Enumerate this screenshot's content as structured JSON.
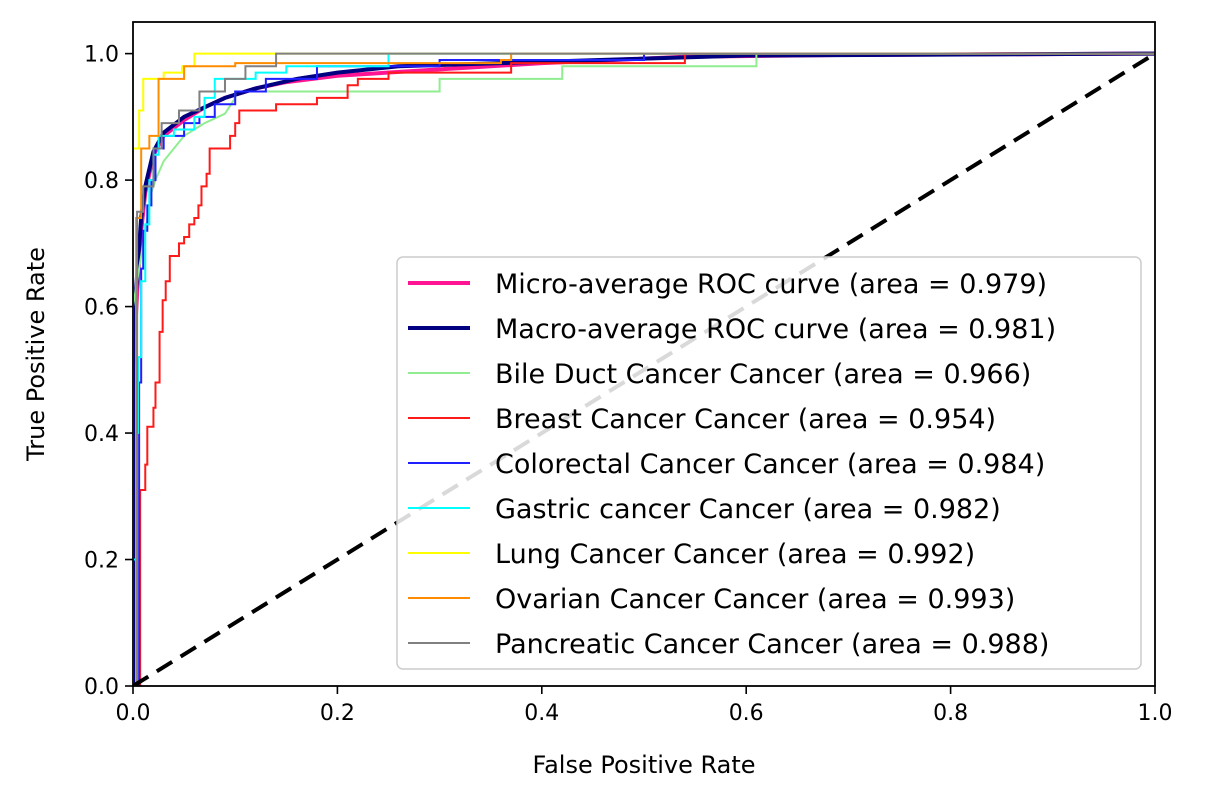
{
  "chart_data": {
    "type": "line",
    "title": "",
    "xlabel": "False Positive Rate",
    "ylabel": "True Positive Rate",
    "xlim": [
      0.0,
      1.0
    ],
    "ylim": [
      0.0,
      1.05
    ],
    "xticks": [
      0.0,
      0.2,
      0.4,
      0.6,
      0.8,
      1.0
    ],
    "yticks": [
      0.0,
      0.2,
      0.4,
      0.6,
      0.8,
      1.0
    ],
    "xtick_labels": [
      "0.0",
      "0.2",
      "0.4",
      "0.6",
      "0.8",
      "1.0"
    ],
    "ytick_labels": [
      "0.0",
      "0.2",
      "0.4",
      "0.6",
      "0.8",
      "1.0"
    ],
    "grid": false,
    "legend_position": "lower-right",
    "series": [
      {
        "name": "Micro-average ROC curve (area = 0.979)",
        "color": "#ff1493",
        "width": 4,
        "points": [
          [
            0,
            0
          ],
          [
            0,
            0.5
          ],
          [
            0.004,
            0.62
          ],
          [
            0.008,
            0.72
          ],
          [
            0.012,
            0.78
          ],
          [
            0.02,
            0.84
          ],
          [
            0.03,
            0.87
          ],
          [
            0.05,
            0.895
          ],
          [
            0.07,
            0.915
          ],
          [
            0.09,
            0.93
          ],
          [
            0.12,
            0.945
          ],
          [
            0.15,
            0.955
          ],
          [
            0.2,
            0.965
          ],
          [
            0.3,
            0.975
          ],
          [
            0.4,
            0.985
          ],
          [
            0.54,
            0.995
          ],
          [
            0.7,
            0.998
          ],
          [
            1.0,
            1.0
          ]
        ]
      },
      {
        "name": "Macro-average ROC curve (area = 0.981)",
        "color": "#000080",
        "width": 4,
        "points": [
          [
            0,
            0
          ],
          [
            0,
            0.55
          ],
          [
            0.004,
            0.65
          ],
          [
            0.008,
            0.74
          ],
          [
            0.012,
            0.79
          ],
          [
            0.02,
            0.845
          ],
          [
            0.03,
            0.875
          ],
          [
            0.05,
            0.9
          ],
          [
            0.07,
            0.915
          ],
          [
            0.09,
            0.93
          ],
          [
            0.12,
            0.945
          ],
          [
            0.16,
            0.96
          ],
          [
            0.2,
            0.97
          ],
          [
            0.26,
            0.98
          ],
          [
            0.36,
            0.985
          ],
          [
            0.5,
            0.992
          ],
          [
            0.6,
            0.997
          ],
          [
            1.0,
            1.0
          ]
        ]
      },
      {
        "name": "Bile Duct Cancer Cancer (area = 0.966)",
        "color": "#90ee90",
        "width": 2,
        "points": [
          [
            0,
            0
          ],
          [
            0,
            0.6
          ],
          [
            0.01,
            0.7
          ],
          [
            0.018,
            0.78
          ],
          [
            0.022,
            0.8
          ],
          [
            0.03,
            0.83
          ],
          [
            0.05,
            0.87
          ],
          [
            0.07,
            0.89
          ],
          [
            0.09,
            0.905
          ],
          [
            0.1,
            0.93
          ],
          [
            0.1,
            0.94
          ],
          [
            0.3,
            0.94
          ],
          [
            0.3,
            0.96
          ],
          [
            0.42,
            0.96
          ],
          [
            0.42,
            0.98
          ],
          [
            0.61,
            0.98
          ],
          [
            0.61,
            1.0
          ],
          [
            1.0,
            1.0
          ]
        ]
      },
      {
        "name": "Breast Cancer Cancer (area = 0.954)",
        "color": "#ff1a1a",
        "width": 2,
        "points": [
          [
            0,
            0
          ],
          [
            0.007,
            0.0
          ],
          [
            0.007,
            0.31
          ],
          [
            0.012,
            0.31
          ],
          [
            0.012,
            0.35
          ],
          [
            0.014,
            0.35
          ],
          [
            0.014,
            0.41
          ],
          [
            0.02,
            0.41
          ],
          [
            0.02,
            0.44
          ],
          [
            0.022,
            0.44
          ],
          [
            0.022,
            0.48
          ],
          [
            0.026,
            0.48
          ],
          [
            0.026,
            0.56
          ],
          [
            0.029,
            0.56
          ],
          [
            0.029,
            0.61
          ],
          [
            0.032,
            0.61
          ],
          [
            0.032,
            0.64
          ],
          [
            0.036,
            0.64
          ],
          [
            0.036,
            0.68
          ],
          [
            0.045,
            0.68
          ],
          [
            0.045,
            0.7
          ],
          [
            0.05,
            0.7
          ],
          [
            0.05,
            0.71
          ],
          [
            0.055,
            0.71
          ],
          [
            0.055,
            0.73
          ],
          [
            0.06,
            0.73
          ],
          [
            0.06,
            0.74
          ],
          [
            0.064,
            0.74
          ],
          [
            0.064,
            0.76
          ],
          [
            0.067,
            0.76
          ],
          [
            0.067,
            0.79
          ],
          [
            0.072,
            0.79
          ],
          [
            0.072,
            0.81
          ],
          [
            0.075,
            0.81
          ],
          [
            0.075,
            0.85
          ],
          [
            0.095,
            0.85
          ],
          [
            0.095,
            0.87
          ],
          [
            0.1,
            0.87
          ],
          [
            0.1,
            0.89
          ],
          [
            0.104,
            0.89
          ],
          [
            0.104,
            0.91
          ],
          [
            0.14,
            0.91
          ],
          [
            0.14,
            0.92
          ],
          [
            0.18,
            0.92
          ],
          [
            0.18,
            0.93
          ],
          [
            0.21,
            0.93
          ],
          [
            0.21,
            0.95
          ],
          [
            0.22,
            0.95
          ],
          [
            0.22,
            0.96
          ],
          [
            0.25,
            0.96
          ],
          [
            0.25,
            0.97
          ],
          [
            0.37,
            0.97
          ],
          [
            0.37,
            0.985
          ],
          [
            0.54,
            0.985
          ],
          [
            0.54,
            1.0
          ],
          [
            1.0,
            1.0
          ]
        ]
      },
      {
        "name": "Colorectal Cancer Cancer (area = 0.984)",
        "color": "#1f1fff",
        "width": 2,
        "points": [
          [
            0,
            0
          ],
          [
            0.006,
            0
          ],
          [
            0.006,
            0.48
          ],
          [
            0.008,
            0.48
          ],
          [
            0.008,
            0.66
          ],
          [
            0.01,
            0.66
          ],
          [
            0.01,
            0.72
          ],
          [
            0.014,
            0.72
          ],
          [
            0.014,
            0.76
          ],
          [
            0.018,
            0.76
          ],
          [
            0.018,
            0.8
          ],
          [
            0.022,
            0.8
          ],
          [
            0.022,
            0.85
          ],
          [
            0.03,
            0.85
          ],
          [
            0.03,
            0.87
          ],
          [
            0.05,
            0.87
          ],
          [
            0.05,
            0.89
          ],
          [
            0.065,
            0.89
          ],
          [
            0.065,
            0.9
          ],
          [
            0.08,
            0.9
          ],
          [
            0.08,
            0.92
          ],
          [
            0.1,
            0.92
          ],
          [
            0.1,
            0.94
          ],
          [
            0.13,
            0.94
          ],
          [
            0.13,
            0.96
          ],
          [
            0.18,
            0.96
          ],
          [
            0.18,
            0.98
          ],
          [
            0.3,
            0.98
          ],
          [
            0.3,
            0.99
          ],
          [
            0.5,
            0.99
          ],
          [
            0.5,
            1.0
          ],
          [
            1.0,
            1.0
          ]
        ]
      },
      {
        "name": "Gastric cancer Cancer (area = 0.982)",
        "color": "#00ffff",
        "width": 2,
        "points": [
          [
            0,
            0
          ],
          [
            0,
            0.2
          ],
          [
            0.003,
            0.2
          ],
          [
            0.003,
            0.4
          ],
          [
            0.005,
            0.4
          ],
          [
            0.005,
            0.52
          ],
          [
            0.008,
            0.52
          ],
          [
            0.008,
            0.64
          ],
          [
            0.012,
            0.64
          ],
          [
            0.012,
            0.73
          ],
          [
            0.016,
            0.73
          ],
          [
            0.016,
            0.8
          ],
          [
            0.02,
            0.8
          ],
          [
            0.02,
            0.84
          ],
          [
            0.025,
            0.84
          ],
          [
            0.025,
            0.87
          ],
          [
            0.04,
            0.87
          ],
          [
            0.04,
            0.88
          ],
          [
            0.06,
            0.88
          ],
          [
            0.06,
            0.9
          ],
          [
            0.07,
            0.9
          ],
          [
            0.07,
            0.93
          ],
          [
            0.08,
            0.93
          ],
          [
            0.08,
            0.96
          ],
          [
            0.12,
            0.96
          ],
          [
            0.12,
            0.97
          ],
          [
            0.15,
            0.97
          ],
          [
            0.15,
            0.98
          ],
          [
            0.25,
            0.98
          ],
          [
            0.25,
            1.0
          ],
          [
            1.0,
            1.0
          ]
        ]
      },
      {
        "name": "Lung Cancer Cancer (area = 0.992)",
        "color": "#ffff00",
        "width": 2,
        "points": [
          [
            0,
            0
          ],
          [
            0,
            0.85
          ],
          [
            0.006,
            0.85
          ],
          [
            0.006,
            0.91
          ],
          [
            0.01,
            0.91
          ],
          [
            0.01,
            0.96
          ],
          [
            0.03,
            0.96
          ],
          [
            0.03,
            0.97
          ],
          [
            0.048,
            0.97
          ],
          [
            0.048,
            0.98
          ],
          [
            0.06,
            0.98
          ],
          [
            0.06,
            1.0
          ],
          [
            1.0,
            1.0
          ]
        ]
      },
      {
        "name": "Ovarian Cancer Cancer (area = 0.993)",
        "color": "#ff8c00",
        "width": 2,
        "points": [
          [
            0,
            0
          ],
          [
            0.003,
            0
          ],
          [
            0.003,
            0.74
          ],
          [
            0.008,
            0.74
          ],
          [
            0.008,
            0.85
          ],
          [
            0.016,
            0.85
          ],
          [
            0.016,
            0.87
          ],
          [
            0.025,
            0.87
          ],
          [
            0.025,
            0.96
          ],
          [
            0.05,
            0.96
          ],
          [
            0.05,
            0.98
          ],
          [
            0.1,
            0.98
          ],
          [
            0.1,
            0.985
          ],
          [
            0.36,
            0.985
          ],
          [
            0.36,
            0.99
          ],
          [
            0.37,
            0.99
          ],
          [
            0.37,
            1.0
          ],
          [
            1.0,
            1.0
          ]
        ]
      },
      {
        "name": "Pancreatic Cancer Cancer (area = 0.988)",
        "color": "#808080",
        "width": 2,
        "points": [
          [
            0,
            0
          ],
          [
            0.004,
            0
          ],
          [
            0.004,
            0.75
          ],
          [
            0.01,
            0.75
          ],
          [
            0.01,
            0.79
          ],
          [
            0.02,
            0.79
          ],
          [
            0.02,
            0.85
          ],
          [
            0.028,
            0.85
          ],
          [
            0.028,
            0.89
          ],
          [
            0.045,
            0.89
          ],
          [
            0.045,
            0.91
          ],
          [
            0.065,
            0.91
          ],
          [
            0.065,
            0.94
          ],
          [
            0.09,
            0.94
          ],
          [
            0.09,
            0.96
          ],
          [
            0.11,
            0.96
          ],
          [
            0.11,
            0.98
          ],
          [
            0.14,
            0.98
          ],
          [
            0.14,
            1.0
          ],
          [
            0.175,
            1.0
          ],
          [
            0.175,
            1.0
          ],
          [
            1.0,
            1.0
          ]
        ]
      }
    ],
    "reference_line": {
      "points": [
        [
          0,
          0
        ],
        [
          1,
          1
        ]
      ],
      "color": "#000000",
      "dashed": true
    }
  }
}
